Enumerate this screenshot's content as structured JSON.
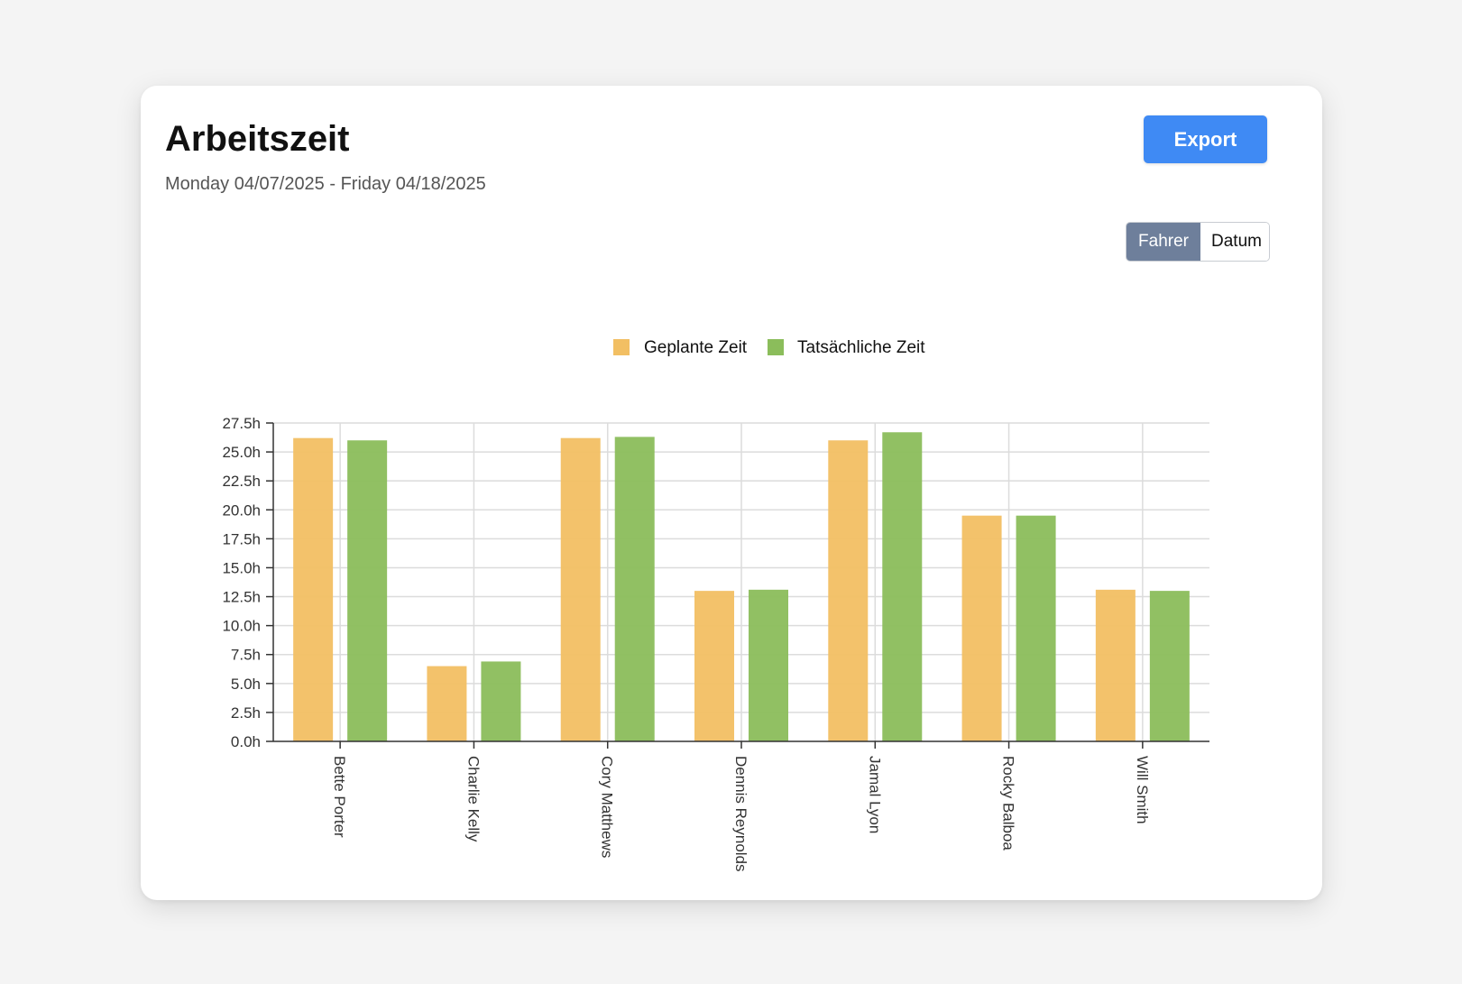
{
  "header": {
    "title": "Arbeitszeit",
    "date_range": "Monday 04/07/2025 - Friday 04/18/2025"
  },
  "toolbar": {
    "export_label": "Export"
  },
  "view_toggle": {
    "options": [
      "Fahrer",
      "Datum"
    ],
    "selected": "Fahrer"
  },
  "colors": {
    "accent": "#3f8af4",
    "toggle_active": "#6e7f9b",
    "planned": "#f2bf63",
    "actual": "#8bbd5b"
  },
  "chart_data": {
    "type": "bar",
    "categories": [
      "Bette Porter",
      "Charlie Kelly",
      "Cory Matthews",
      "Dennis Reynolds",
      "Jamal Lyon",
      "Rocky Balboa",
      "Will Smith"
    ],
    "series": [
      {
        "name": "Geplante Zeit",
        "values": [
          26.2,
          6.5,
          26.2,
          13.0,
          26.0,
          19.5,
          13.1
        ]
      },
      {
        "name": "Tatsächliche Zeit",
        "values": [
          26.0,
          6.9,
          26.3,
          13.1,
          26.7,
          19.5,
          13.0
        ]
      }
    ],
    "ylim": [
      0,
      27.5
    ],
    "yticks": [
      "0.0h",
      "2.5h",
      "5.0h",
      "7.5h",
      "10.0h",
      "12.5h",
      "15.0h",
      "17.5h",
      "20.0h",
      "22.5h",
      "25.0h",
      "27.5h"
    ],
    "grid": true,
    "legend": "top-center"
  }
}
